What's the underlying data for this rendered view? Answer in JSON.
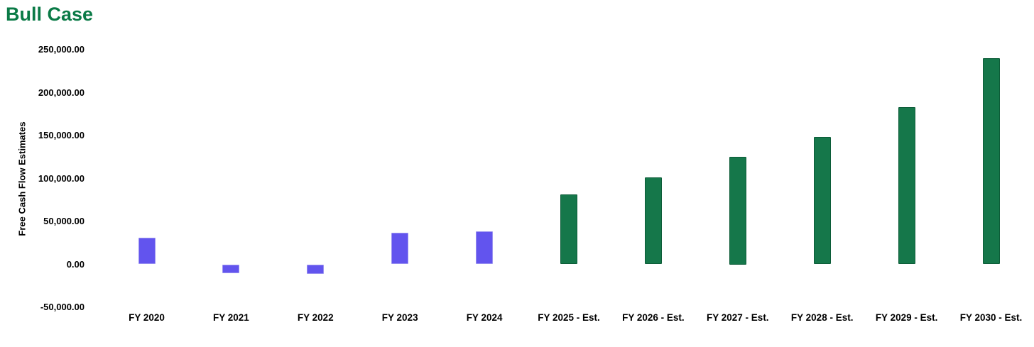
{
  "chart": {
    "title": "Bull Case"
  },
  "chart_data": {
    "type": "bar",
    "title": "Bull Case",
    "xlabel": "",
    "ylabel": "Free Cash Flow Estimates",
    "categories": [
      "FY 2020",
      "FY 2021",
      "FY 2022",
      "FY 2023",
      "FY 2024",
      "FY 2025 - Est.",
      "FY 2026 - Est.",
      "FY 2027 - Est.",
      "FY 2028 - Est.",
      "FY 2029 - Est.",
      "FY 2030 - Est."
    ],
    "series": [
      {
        "name": "Free Cash Flow Estimates",
        "values": [
          31000,
          -10000,
          -11500,
          36800,
          38200,
          81000,
          101000,
          125000,
          148000,
          183000,
          240000
        ]
      }
    ],
    "segments": [
      "historical",
      "historical",
      "historical",
      "historical",
      "historical",
      "estimate",
      "estimate",
      "estimate",
      "estimate",
      "estimate",
      "estimate"
    ],
    "ylim": [
      -50000,
      250000
    ],
    "y_tick_values": [
      250000,
      200000,
      150000,
      100000,
      50000,
      0,
      -50000
    ],
    "y_tick_labels": [
      "250,000.00",
      "200,000.00",
      "150,000.00",
      "100,000.00",
      "50,000.00",
      "0.00",
      "-50,000.00"
    ],
    "grid": false,
    "legend": false,
    "colors": {
      "historical_fill": "#6254ee",
      "historical_border": "#9a92f0",
      "estimate_fill": "#15774a",
      "estimate_border": "#0c5c38",
      "title": "#0a7a46",
      "text": "#000000"
    }
  }
}
